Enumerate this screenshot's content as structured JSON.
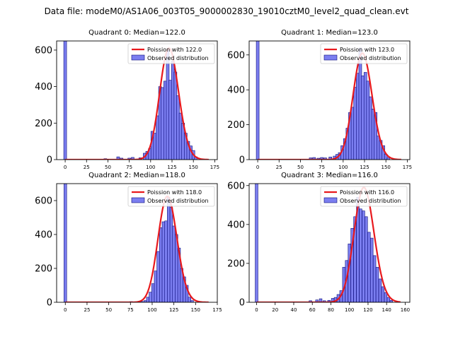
{
  "figure_title": "Data file: modeM0/AS1A06_003T05_9000002830_19010cztM0_level2_quad_clean.evt",
  "colors": {
    "bar_fill": "#7b7ef0",
    "bar_edge": "#0b0b7a",
    "curve": "#e8191d"
  },
  "chart_data": [
    {
      "type": "bar",
      "title": "Quadrant 0: Median=122.0",
      "legend": {
        "curve": "Poission with 122.0",
        "bars": "Observed distribution",
        "placement": "top-right"
      },
      "xlim": [
        -10,
        178
      ],
      "ylim": [
        0,
        650
      ],
      "xticks": [
        0,
        25,
        50,
        75,
        100,
        125,
        150,
        175
      ],
      "yticks": [
        0,
        200,
        400,
        600
      ],
      "bin_width": 3.3,
      "bins": [
        {
          "x": 0,
          "count": 650
        },
        {
          "x": 47,
          "count": 5
        },
        {
          "x": 62,
          "count": 15
        },
        {
          "x": 66,
          "count": 8
        },
        {
          "x": 75,
          "count": 8
        },
        {
          "x": 79,
          "count": 12
        },
        {
          "x": 88,
          "count": 10
        },
        {
          "x": 93,
          "count": 35
        },
        {
          "x": 96,
          "count": 45
        },
        {
          "x": 99,
          "count": 60
        },
        {
          "x": 102,
          "count": 155
        },
        {
          "x": 105,
          "count": 145
        },
        {
          "x": 108,
          "count": 240
        },
        {
          "x": 111,
          "count": 400
        },
        {
          "x": 114,
          "count": 395
        },
        {
          "x": 117,
          "count": 430
        },
        {
          "x": 120,
          "count": 600
        },
        {
          "x": 123,
          "count": 435
        },
        {
          "x": 126,
          "count": 540
        },
        {
          "x": 129,
          "count": 480
        },
        {
          "x": 132,
          "count": 350
        },
        {
          "x": 135,
          "count": 255
        },
        {
          "x": 138,
          "count": 200
        },
        {
          "x": 141,
          "count": 145
        },
        {
          "x": 144,
          "count": 100
        },
        {
          "x": 147,
          "count": 75
        },
        {
          "x": 150,
          "count": 50
        },
        {
          "x": 153,
          "count": 15
        }
      ],
      "curve_lambda": 122.0,
      "curve_peak": 610
    },
    {
      "type": "bar",
      "title": "Quadrant 1: Median=123.0",
      "legend": {
        "curve": "Poission with 123.0",
        "bars": "Observed distribution",
        "placement": "top-right"
      },
      "xlim": [
        -10,
        178
      ],
      "ylim": [
        0,
        680
      ],
      "xticks": [
        0,
        25,
        50,
        75,
        100,
        125,
        150,
        175
      ],
      "yticks": [
        0,
        200,
        400,
        600
      ],
      "bin_width": 3.3,
      "bins": [
        {
          "x": 0,
          "count": 680
        },
        {
          "x": 62,
          "count": 10
        },
        {
          "x": 66,
          "count": 12
        },
        {
          "x": 71,
          "count": 8
        },
        {
          "x": 75,
          "count": 12
        },
        {
          "x": 79,
          "count": 10
        },
        {
          "x": 85,
          "count": 15
        },
        {
          "x": 90,
          "count": 20
        },
        {
          "x": 93,
          "count": 30
        },
        {
          "x": 96,
          "count": 40
        },
        {
          "x": 99,
          "count": 80
        },
        {
          "x": 102,
          "count": 120
        },
        {
          "x": 105,
          "count": 180
        },
        {
          "x": 108,
          "count": 270
        },
        {
          "x": 111,
          "count": 300
        },
        {
          "x": 114,
          "count": 415
        },
        {
          "x": 117,
          "count": 495
        },
        {
          "x": 120,
          "count": 640
        },
        {
          "x": 123,
          "count": 480
        },
        {
          "x": 126,
          "count": 500
        },
        {
          "x": 129,
          "count": 450
        },
        {
          "x": 132,
          "count": 360
        },
        {
          "x": 135,
          "count": 290
        },
        {
          "x": 138,
          "count": 270
        },
        {
          "x": 141,
          "count": 135
        },
        {
          "x": 144,
          "count": 110
        },
        {
          "x": 147,
          "count": 80
        },
        {
          "x": 150,
          "count": 30
        },
        {
          "x": 153,
          "count": 10
        }
      ],
      "curve_lambda": 123.0,
      "curve_peak": 610
    },
    {
      "type": "bar",
      "title": "Quadrant 2: Median=118.0",
      "legend": {
        "curve": "Poission with 118.0",
        "bars": "Observed distribution",
        "placement": "top-right"
      },
      "xlim": [
        -10,
        175
      ],
      "ylim": [
        0,
        700
      ],
      "xticks": [
        0,
        25,
        50,
        75,
        100,
        125,
        150,
        175
      ],
      "yticks": [
        0,
        200,
        400,
        600
      ],
      "bin_width": 3.1,
      "bins": [
        {
          "x": 0,
          "count": 700
        },
        {
          "x": 76,
          "count": 4
        },
        {
          "x": 88,
          "count": 5
        },
        {
          "x": 92,
          "count": 10
        },
        {
          "x": 95,
          "count": 30
        },
        {
          "x": 98,
          "count": 60
        },
        {
          "x": 101,
          "count": 110
        },
        {
          "x": 104,
          "count": 185
        },
        {
          "x": 107,
          "count": 300
        },
        {
          "x": 110,
          "count": 440
        },
        {
          "x": 113,
          "count": 475
        },
        {
          "x": 116,
          "count": 480
        },
        {
          "x": 119,
          "count": 620
        },
        {
          "x": 122,
          "count": 560
        },
        {
          "x": 125,
          "count": 450
        },
        {
          "x": 128,
          "count": 400
        },
        {
          "x": 131,
          "count": 320
        },
        {
          "x": 134,
          "count": 200
        },
        {
          "x": 137,
          "count": 150
        },
        {
          "x": 140,
          "count": 100
        },
        {
          "x": 143,
          "count": 30
        },
        {
          "x": 146,
          "count": 10
        }
      ],
      "curve_lambda": 118.0,
      "curve_peak": 625
    },
    {
      "type": "bar",
      "title": "Quadrant 3: Median=116.0",
      "legend": {
        "curve": "Poission with 116.0",
        "bars": "Observed distribution",
        "placement": "top-right"
      },
      "xlim": [
        -8,
        165
      ],
      "ylim": [
        0,
        610
      ],
      "xticks": [
        0,
        20,
        40,
        60,
        80,
        100,
        120,
        140,
        160
      ],
      "yticks": [
        0,
        200,
        400,
        600
      ],
      "bin_width": 2.9,
      "bins": [
        {
          "x": 0,
          "count": 610
        },
        {
          "x": 58,
          "count": 8
        },
        {
          "x": 65,
          "count": 12
        },
        {
          "x": 69,
          "count": 18
        },
        {
          "x": 73,
          "count": 8
        },
        {
          "x": 78,
          "count": 10
        },
        {
          "x": 82,
          "count": 20
        },
        {
          "x": 85,
          "count": 25
        },
        {
          "x": 88,
          "count": 40
        },
        {
          "x": 91,
          "count": 60
        },
        {
          "x": 94,
          "count": 180
        },
        {
          "x": 97,
          "count": 215
        },
        {
          "x": 100,
          "count": 300
        },
        {
          "x": 103,
          "count": 380
        },
        {
          "x": 106,
          "count": 440
        },
        {
          "x": 109,
          "count": 540
        },
        {
          "x": 112,
          "count": 480
        },
        {
          "x": 115,
          "count": 470
        },
        {
          "x": 118,
          "count": 440
        },
        {
          "x": 121,
          "count": 360
        },
        {
          "x": 124,
          "count": 330
        },
        {
          "x": 127,
          "count": 240
        },
        {
          "x": 130,
          "count": 180
        },
        {
          "x": 133,
          "count": 120
        },
        {
          "x": 136,
          "count": 80
        },
        {
          "x": 139,
          "count": 50
        },
        {
          "x": 142,
          "count": 25
        },
        {
          "x": 145,
          "count": 10
        }
      ],
      "curve_lambda": 116.0,
      "curve_peak": 590
    }
  ]
}
